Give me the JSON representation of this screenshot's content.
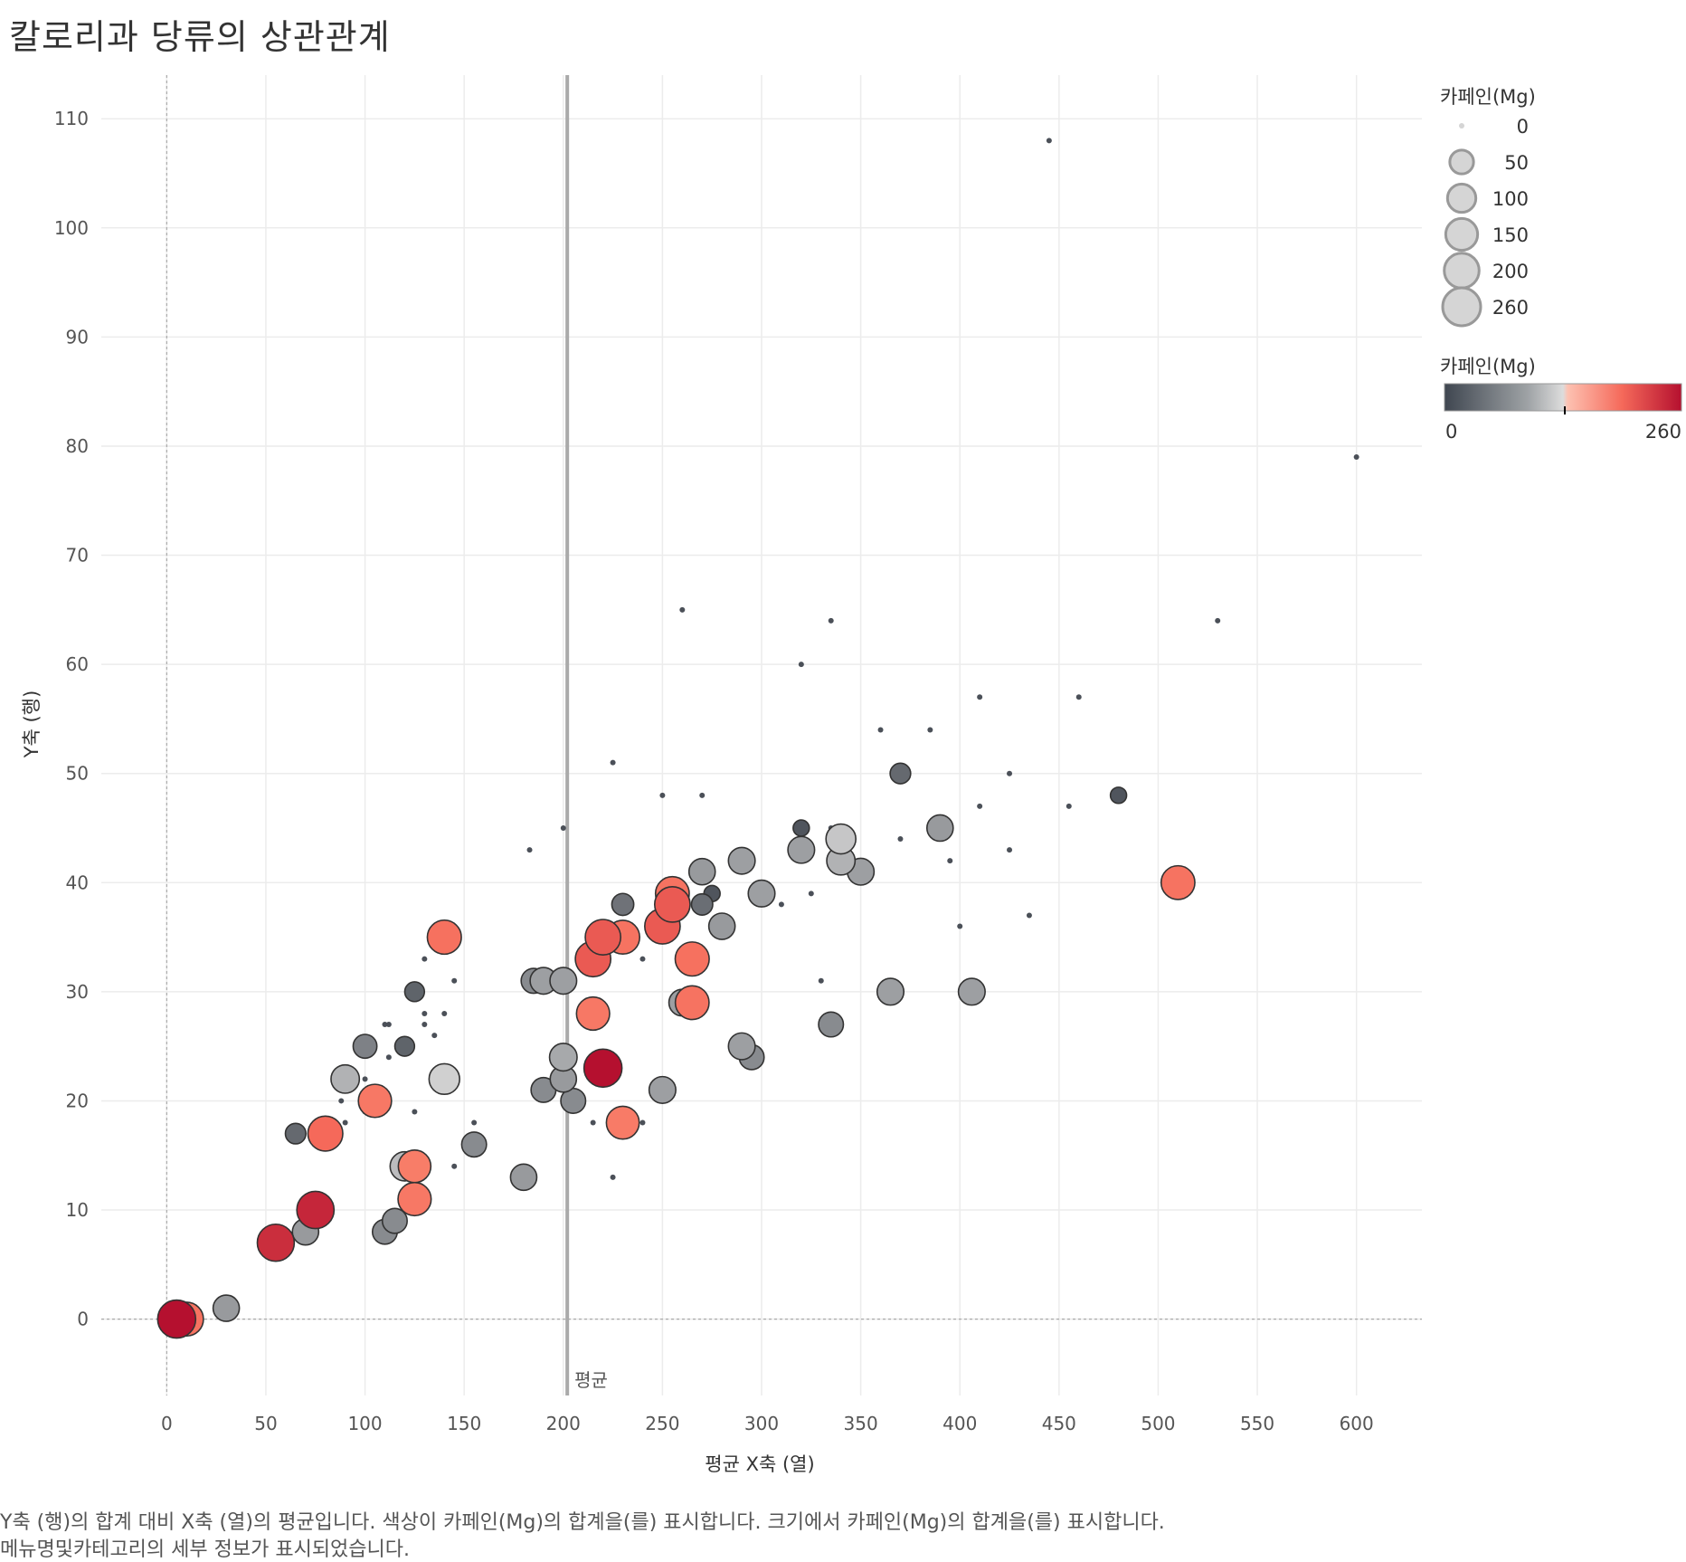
{
  "title": "칼로리과 당류의 상관관계",
  "caption_line1": "Y축 (행)의 합계 대비 X축 (열)의 평균입니다. 색상이 카페인(Mg)의 합계을(를) 표시합니다. 크기에서 카페인(Mg)의 합계을(를) 표시합니다.",
  "caption_line2": "메뉴명및카테고리의 세부 정보가 표시되었습니다.",
  "colors": {
    "dark": "#4b5058",
    "mid": "#d0d0d0",
    "salmon": "#fa8c73",
    "red": "#b5102f",
    "grid": "#ececec",
    "mean_line": "#aaaaaa"
  },
  "chart_data": {
    "type": "scatter",
    "xlabel": "평균 X축 (열)",
    "ylabel": "Y축 (행)",
    "xlim": [
      -33,
      633
    ],
    "ylim": [
      -7,
      114
    ],
    "xticks": [
      0,
      50,
      100,
      150,
      200,
      250,
      300,
      350,
      400,
      450,
      500,
      550,
      600
    ],
    "yticks": [
      0,
      10,
      20,
      30,
      40,
      50,
      60,
      70,
      80,
      90,
      100,
      110
    ],
    "mean_x": 202,
    "mean_label": "평균",
    "grid": true,
    "size_legend": {
      "title": "카페인(Mg)",
      "values": [
        0,
        50,
        100,
        150,
        200,
        260
      ]
    },
    "color_legend": {
      "title": "카페인(Mg)",
      "min": 0,
      "max": 260,
      "min_label": "0",
      "max_label": "260"
    },
    "points": [
      {
        "x": 5,
        "y": 0,
        "c": 260
      },
      {
        "x": 10,
        "y": 0,
        "c": 180
      },
      {
        "x": 30,
        "y": 1,
        "c": 75
      },
      {
        "x": 55,
        "y": 7,
        "c": 240
      },
      {
        "x": 70,
        "y": 8,
        "c": 75
      },
      {
        "x": 75,
        "y": 10,
        "c": 245
      },
      {
        "x": 65,
        "y": 17,
        "c": 25
      },
      {
        "x": 80,
        "y": 17,
        "c": 200
      },
      {
        "x": 85,
        "y": 17,
        "c": 0
      },
      {
        "x": 90,
        "y": 22,
        "c": 100
      },
      {
        "x": 100,
        "y": 25,
        "c": 50
      },
      {
        "x": 105,
        "y": 20,
        "c": 170
      },
      {
        "x": 110,
        "y": 8,
        "c": 60
      },
      {
        "x": 115,
        "y": 9,
        "c": 60
      },
      {
        "x": 120,
        "y": 14,
        "c": 110
      },
      {
        "x": 125,
        "y": 14,
        "c": 160
      },
      {
        "x": 125,
        "y": 11,
        "c": 170
      },
      {
        "x": 120,
        "y": 25,
        "c": 20
      },
      {
        "x": 125,
        "y": 30,
        "c": 20
      },
      {
        "x": 140,
        "y": 22,
        "c": 130
      },
      {
        "x": 140,
        "y": 35,
        "c": 185
      },
      {
        "x": 155,
        "y": 16,
        "c": 60
      },
      {
        "x": 180,
        "y": 13,
        "c": 75
      },
      {
        "x": 185,
        "y": 31,
        "c": 60
      },
      {
        "x": 190,
        "y": 31,
        "c": 80
      },
      {
        "x": 200,
        "y": 31,
        "c": 80
      },
      {
        "x": 200,
        "y": 24,
        "c": 90
      },
      {
        "x": 200,
        "y": 22,
        "c": 75
      },
      {
        "x": 190,
        "y": 21,
        "c": 60
      },
      {
        "x": 205,
        "y": 20,
        "c": 60
      },
      {
        "x": 215,
        "y": 33,
        "c": 210
      },
      {
        "x": 215,
        "y": 28,
        "c": 170
      },
      {
        "x": 220,
        "y": 35,
        "c": 210
      },
      {
        "x": 220,
        "y": 23,
        "c": 260
      },
      {
        "x": 230,
        "y": 35,
        "c": 180
      },
      {
        "x": 230,
        "y": 18,
        "c": 165
      },
      {
        "x": 230,
        "y": 38,
        "c": 35
      },
      {
        "x": 250,
        "y": 21,
        "c": 80
      },
      {
        "x": 250,
        "y": 36,
        "c": 210
      },
      {
        "x": 255,
        "y": 39,
        "c": 180
      },
      {
        "x": 255,
        "y": 38,
        "c": 210
      },
      {
        "x": 260,
        "y": 29,
        "c": 80
      },
      {
        "x": 265,
        "y": 29,
        "c": 180
      },
      {
        "x": 265,
        "y": 33,
        "c": 185
      },
      {
        "x": 270,
        "y": 41,
        "c": 75
      },
      {
        "x": 270,
        "y": 38,
        "c": 30
      },
      {
        "x": 275,
        "y": 39,
        "c": 5
      },
      {
        "x": 280,
        "y": 36,
        "c": 75
      },
      {
        "x": 290,
        "y": 42,
        "c": 80
      },
      {
        "x": 290,
        "y": 25,
        "c": 80
      },
      {
        "x": 295,
        "y": 24,
        "c": 60
      },
      {
        "x": 300,
        "y": 39,
        "c": 80
      },
      {
        "x": 320,
        "y": 43,
        "c": 80
      },
      {
        "x": 320,
        "y": 45,
        "c": 5
      },
      {
        "x": 325,
        "y": 39,
        "c": 0
      },
      {
        "x": 335,
        "y": 27,
        "c": 60
      },
      {
        "x": 340,
        "y": 44,
        "c": 120
      },
      {
        "x": 340,
        "y": 42,
        "c": 100
      },
      {
        "x": 350,
        "y": 41,
        "c": 80
      },
      {
        "x": 365,
        "y": 30,
        "c": 80
      },
      {
        "x": 370,
        "y": 50,
        "c": 25
      },
      {
        "x": 370,
        "y": 44,
        "c": 0
      },
      {
        "x": 390,
        "y": 45,
        "c": 75
      },
      {
        "x": 406,
        "y": 30,
        "c": 80
      },
      {
        "x": 435,
        "y": 37,
        "c": 0
      },
      {
        "x": 445,
        "y": 108,
        "c": 0
      },
      {
        "x": 480,
        "y": 48,
        "c": 5
      },
      {
        "x": 510,
        "y": 40,
        "c": 180
      },
      {
        "x": 600,
        "y": 79,
        "c": 0
      },
      {
        "x": 530,
        "y": 64,
        "c": 0
      },
      {
        "x": 460,
        "y": 57,
        "c": 0
      },
      {
        "x": 410,
        "y": 57,
        "c": 0
      },
      {
        "x": 385,
        "y": 54,
        "c": 0
      },
      {
        "x": 360,
        "y": 54,
        "c": 0
      },
      {
        "x": 335,
        "y": 64,
        "c": 0
      },
      {
        "x": 260,
        "y": 65,
        "c": 0
      },
      {
        "x": 320,
        "y": 60,
        "c": 0
      },
      {
        "x": 225,
        "y": 51,
        "c": 0
      },
      {
        "x": 250,
        "y": 48,
        "c": 0
      },
      {
        "x": 270,
        "y": 48,
        "c": 0
      },
      {
        "x": 200,
        "y": 45,
        "c": 0
      },
      {
        "x": 183,
        "y": 43,
        "c": 0
      },
      {
        "x": 425,
        "y": 50,
        "c": 0
      },
      {
        "x": 410,
        "y": 47,
        "c": 0
      },
      {
        "x": 455,
        "y": 47,
        "c": 0
      },
      {
        "x": 425,
        "y": 43,
        "c": 0
      },
      {
        "x": 395,
        "y": 42,
        "c": 0
      },
      {
        "x": 400,
        "y": 36,
        "c": 0
      },
      {
        "x": 330,
        "y": 31,
        "c": 0
      },
      {
        "x": 310,
        "y": 38,
        "c": 0
      },
      {
        "x": 240,
        "y": 33,
        "c": 0
      },
      {
        "x": 145,
        "y": 31,
        "c": 0
      },
      {
        "x": 130,
        "y": 33,
        "c": 0
      },
      {
        "x": 130,
        "y": 28,
        "c": 0
      },
      {
        "x": 140,
        "y": 28,
        "c": 0
      },
      {
        "x": 130,
        "y": 27,
        "c": 0
      },
      {
        "x": 135,
        "y": 26,
        "c": 0
      },
      {
        "x": 110,
        "y": 27,
        "c": 0
      },
      {
        "x": 112,
        "y": 27,
        "c": 0
      },
      {
        "x": 112,
        "y": 24,
        "c": 0
      },
      {
        "x": 100,
        "y": 22,
        "c": 0
      },
      {
        "x": 100,
        "y": 19,
        "c": 0
      },
      {
        "x": 88,
        "y": 20,
        "c": 0
      },
      {
        "x": 90,
        "y": 18,
        "c": 0
      },
      {
        "x": 125,
        "y": 19,
        "c": 0
      },
      {
        "x": 155,
        "y": 18,
        "c": 0
      },
      {
        "x": 145,
        "y": 14,
        "c": 0
      },
      {
        "x": 215,
        "y": 18,
        "c": 0
      },
      {
        "x": 225,
        "y": 18,
        "c": 0
      },
      {
        "x": 240,
        "y": 18,
        "c": 0
      },
      {
        "x": 225,
        "y": 13,
        "c": 0
      },
      {
        "x": 335,
        "y": 45,
        "c": 0
      }
    ]
  }
}
